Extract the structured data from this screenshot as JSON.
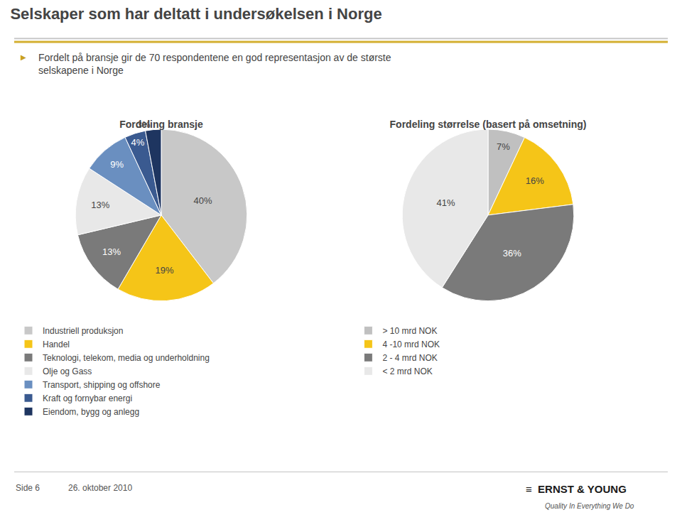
{
  "title": "Selskaper som har deltatt i undersøkelsen i Norge",
  "subtitle": "Fordelt på bransje gir de 70 respondentene en god representasjon av de største\nselskapene i Norge",
  "annotations": [
    "▶",
    "Side 6",
    "26. oktober 2010",
    "≡  ERNST & YOUNG",
    "Quality In Everything We Do"
  ],
  "chart_data": [
    {
      "type": "pie",
      "title": "Fordeling bransje",
      "categories": [
        "Industriell produksjon",
        "Handel",
        "Teknologi, telekom, media og underholdning",
        "Olje og Gass",
        "Transport, shipping og offshore",
        "Kraft og fornybar energi",
        "Eiendom, bygg og anlegg"
      ],
      "values": [
        40,
        19,
        13,
        13,
        9,
        4,
        3
      ],
      "value_labels": [
        "40%",
        "19%",
        "13%",
        "13%",
        "9%",
        "4%",
        "3%"
      ],
      "colors": [
        "#c8c8c8",
        "#f5c518",
        "#7a7a7a",
        "#e8e8e8",
        "#6a8fc0",
        "#3a5a90",
        "#1e3560"
      ],
      "data_labels": true,
      "legend": "bottom"
    },
    {
      "type": "pie",
      "title": "Fordeling størrelse (basert på omsetning)",
      "categories": [
        "> 10 mrd NOK",
        "4 -10 mrd NOK",
        "2 - 4 mrd NOK",
        "< 2 mrd NOK"
      ],
      "values": [
        7,
        16,
        36,
        41
      ],
      "value_labels": [
        "7%",
        "16%",
        "36%",
        "41%"
      ],
      "colors": [
        "#c0c0c0",
        "#f5c518",
        "#7a7a7a",
        "#e8e8e8"
      ],
      "data_labels": true,
      "legend": "bottom"
    }
  ]
}
